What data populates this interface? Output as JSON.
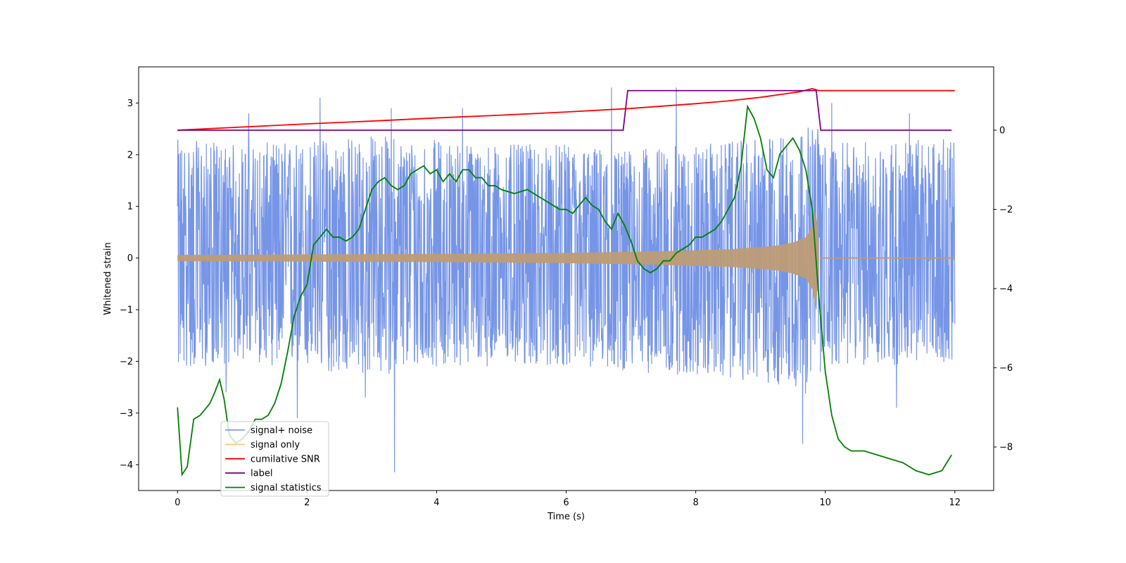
{
  "chart_data": {
    "type": "line",
    "title": "",
    "xlabel": "Time (s)",
    "ylabel": "Whitened strain",
    "y2label": "",
    "xlim": [
      -0.6,
      12.6
    ],
    "ylim": [
      -4.5,
      3.7
    ],
    "y2lim": [
      -9.1,
      1.6
    ],
    "x_ticks": [
      0,
      2,
      4,
      6,
      8,
      10,
      12
    ],
    "x_tick_labels": [
      "0",
      "2",
      "4",
      "6",
      "8",
      "10",
      "12"
    ],
    "y_ticks": [
      -4,
      -3,
      -2,
      -1,
      0,
      1,
      2,
      3
    ],
    "y_tick_labels": [
      "−4",
      "−3",
      "−2",
      "−1",
      "0",
      "1",
      "2",
      "3"
    ],
    "y2_ticks": [
      -8,
      -6,
      -4,
      -2,
      0
    ],
    "y2_tick_labels": [
      "−8",
      "−6",
      "−4",
      "−2",
      "0"
    ],
    "legend_position": "lower-left",
    "series": [
      {
        "name": "signal+ noise",
        "color": "#6f8fe6",
        "axis": "left",
        "kind": "noise",
        "x_range": [
          0,
          12
        ],
        "envelope": {
          "x": [
            0,
            1,
            2,
            3,
            4,
            5,
            6,
            7,
            8,
            9,
            9.9,
            10,
            11,
            12
          ],
          "upper": [
            2.3,
            2.2,
            2.3,
            2.4,
            2.3,
            2.2,
            2.2,
            2.1,
            2.2,
            2.3,
            2.6,
            2.2,
            2.3,
            2.3
          ],
          "lower": [
            -2.2,
            -2.0,
            -2.2,
            -2.3,
            -2.1,
            -2.1,
            -2.1,
            -2.2,
            -2.3,
            -2.4,
            -2.7,
            -2.1,
            -2.1,
            -2.0
          ]
        },
        "spikes": [
          {
            "x": 1.1,
            "y": 2.8
          },
          {
            "x": 2.2,
            "y": 3.1
          },
          {
            "x": 3.3,
            "y": 2.9
          },
          {
            "x": 4.4,
            "y": 2.9
          },
          {
            "x": 6.7,
            "y": 3.3
          },
          {
            "x": 7.7,
            "y": 3.3
          },
          {
            "x": 10.1,
            "y": 3.0
          },
          {
            "x": 11.3,
            "y": 2.8
          },
          {
            "x": 3.35,
            "y": -4.15
          },
          {
            "x": 1.85,
            "y": -3.1
          },
          {
            "x": 9.65,
            "y": -3.6
          },
          {
            "x": 11.1,
            "y": -2.9
          },
          {
            "x": 2.9,
            "y": -2.7
          },
          {
            "x": 0.75,
            "y": -2.6
          }
        ]
      },
      {
        "name": "signal only",
        "color": "#ffc46b",
        "fill_color": "#bd9c76",
        "axis": "left",
        "kind": "chirp",
        "x_range": [
          0,
          12
        ],
        "merger_x": 9.9,
        "envelope": {
          "x": [
            0,
            2,
            4,
            6,
            7,
            8,
            8.5,
            9,
            9.3,
            9.5,
            9.7,
            9.8,
            9.85,
            9.9
          ],
          "amp": [
            0.06,
            0.07,
            0.08,
            0.1,
            0.12,
            0.15,
            0.17,
            0.21,
            0.25,
            0.3,
            0.4,
            0.6,
            0.95,
            0.3
          ]
        }
      },
      {
        "name": "cumilative SNR",
        "color": "#ff0000",
        "axis": "right",
        "x": [
          0,
          1,
          2,
          3,
          4,
          5,
          6,
          7,
          8,
          8.5,
          9,
          9.3,
          9.6,
          9.8,
          9.9,
          12
        ],
        "y": [
          0,
          0.08,
          0.16,
          0.23,
          0.31,
          0.38,
          0.46,
          0.55,
          0.67,
          0.74,
          0.83,
          0.9,
          0.97,
          1.05,
          1.0,
          1.0
        ]
      },
      {
        "name": "label",
        "color": "#800080",
        "axis": "right",
        "x": [
          0,
          6.88,
          6.95,
          9.86,
          9.93,
          11.95
        ],
        "y": [
          0,
          0,
          1,
          1,
          0,
          0
        ]
      },
      {
        "name": "signal statistics",
        "color": "#008000",
        "axis": "right",
        "x": [
          0,
          0.07,
          0.15,
          0.25,
          0.35,
          0.5,
          0.58,
          0.65,
          0.72,
          0.8,
          0.9,
          1,
          1.1,
          1.2,
          1.3,
          1.4,
          1.5,
          1.6,
          1.7,
          1.8,
          1.9,
          2,
          2.1,
          2.2,
          2.3,
          2.4,
          2.5,
          2.6,
          2.7,
          2.8,
          2.9,
          3,
          3.1,
          3.2,
          3.3,
          3.4,
          3.5,
          3.6,
          3.7,
          3.8,
          3.9,
          4,
          4.1,
          4.2,
          4.3,
          4.4,
          4.5,
          4.6,
          4.7,
          4.8,
          4.9,
          5,
          5.2,
          5.4,
          5.6,
          5.8,
          5.9,
          6,
          6.1,
          6.2,
          6.3,
          6.4,
          6.5,
          6.6,
          6.7,
          6.8,
          6.9,
          7,
          7.1,
          7.2,
          7.3,
          7.4,
          7.5,
          7.6,
          7.7,
          7.8,
          7.9,
          8,
          8.1,
          8.2,
          8.3,
          8.4,
          8.5,
          8.6,
          8.7,
          8.8,
          8.9,
          9,
          9.1,
          9.2,
          9.3,
          9.4,
          9.5,
          9.6,
          9.7,
          9.8,
          9.9,
          10,
          10.1,
          10.2,
          10.3,
          10.4,
          10.6,
          10.8,
          11,
          11.2,
          11.4,
          11.6,
          11.8,
          11.95
        ],
        "y": [
          -7.0,
          -8.7,
          -8.5,
          -7.3,
          -7.2,
          -6.9,
          -6.6,
          -6.3,
          -6.8,
          -7.7,
          -7.9,
          -7.8,
          -7.6,
          -7.3,
          -7.3,
          -7.2,
          -6.9,
          -6.4,
          -5.6,
          -4.7,
          -4.2,
          -3.9,
          -2.9,
          -2.7,
          -2.5,
          -2.7,
          -2.7,
          -2.8,
          -2.7,
          -2.5,
          -2.0,
          -1.5,
          -1.3,
          -1.2,
          -1.4,
          -1.5,
          -1.4,
          -1.1,
          -1.0,
          -0.9,
          -1.1,
          -1.0,
          -1.3,
          -1.1,
          -1.3,
          -1.0,
          -1.0,
          -1.2,
          -1.2,
          -1.4,
          -1.4,
          -1.5,
          -1.6,
          -1.5,
          -1.7,
          -1.9,
          -2.0,
          -2.0,
          -2.1,
          -1.9,
          -1.7,
          -1.9,
          -2.0,
          -2.3,
          -2.5,
          -2.1,
          -2.4,
          -2.8,
          -3.3,
          -3.5,
          -3.6,
          -3.5,
          -3.3,
          -3.3,
          -3.1,
          -3.0,
          -2.9,
          -2.7,
          -2.7,
          -2.6,
          -2.5,
          -2.3,
          -2.0,
          -1.7,
          -0.9,
          0.6,
          0.3,
          -0.2,
          -1.0,
          -1.2,
          -0.6,
          -0.4,
          -0.2,
          -0.5,
          -1.0,
          -2.0,
          -4.2,
          -6.1,
          -7.2,
          -7.8,
          -8.0,
          -8.1,
          -8.1,
          -8.2,
          -8.3,
          -8.4,
          -8.6,
          -8.7,
          -8.6,
          -8.2
        ]
      }
    ]
  }
}
